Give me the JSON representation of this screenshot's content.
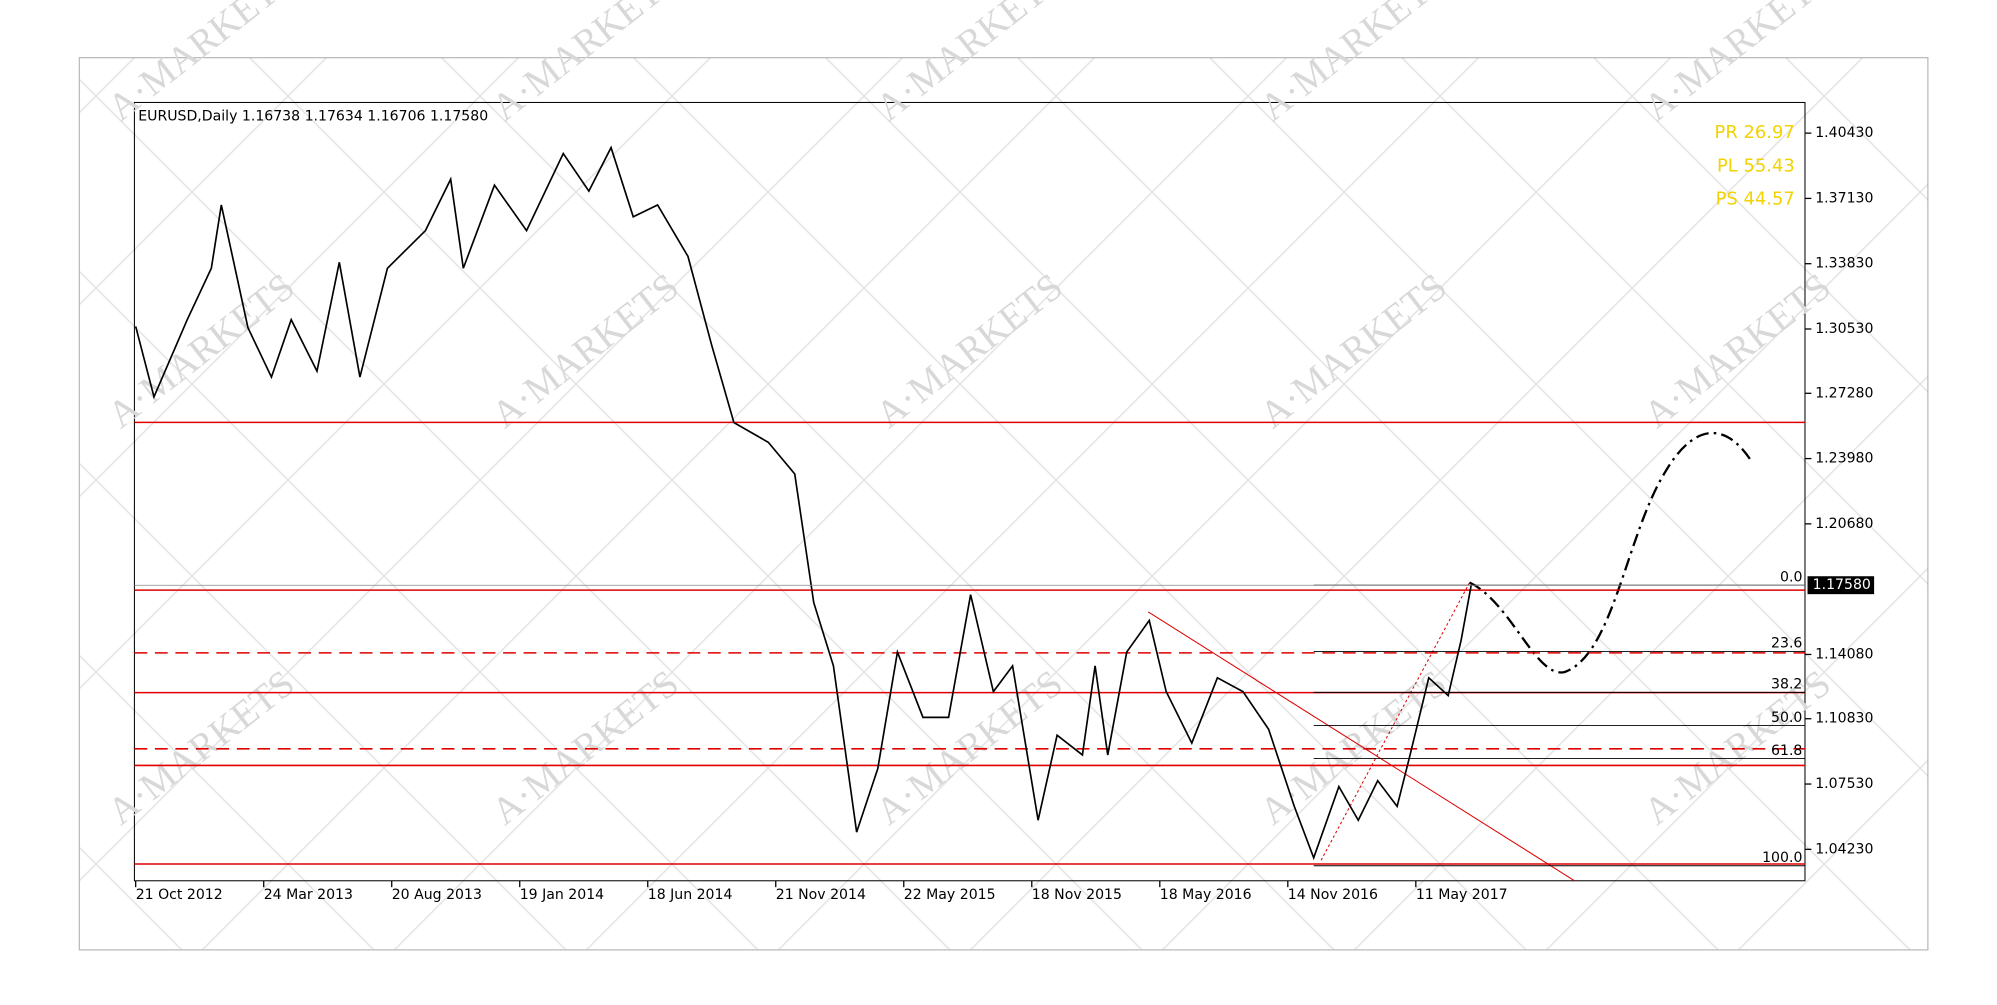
{
  "chart_data": {
    "type": "line",
    "title": "EURUSD,Daily  1.16738 1.17634 1.16706 1.17580",
    "watermark": "A·MARKETS",
    "stats": [
      "PR 26.97",
      "PL 55.43",
      "PS 44.57"
    ],
    "x": [
      "2012-10-21",
      "2012-11-12",
      "2012-12-22",
      "2013-01-20",
      "2013-02-01",
      "2013-03-05",
      "2013-04-02",
      "2013-04-25",
      "2013-05-25",
      "2013-06-20",
      "2013-07-14",
      "2013-08-15",
      "2013-09-29",
      "2013-10-29",
      "2013-11-13",
      "2013-12-20",
      "2014-01-27",
      "2014-03-11",
      "2014-04-10",
      "2014-05-06",
      "2014-06-01",
      "2014-06-30",
      "2014-08-06",
      "2014-09-04",
      "2014-10-01",
      "2014-11-12",
      "2014-12-18",
      "2015-01-14",
      "2015-02-11",
      "2015-03-16",
      "2015-04-15",
      "2015-05-13",
      "2015-06-18",
      "2015-07-24",
      "2015-08-24",
      "2015-09-25",
      "2015-10-22",
      "2015-11-27",
      "2015-12-24",
      "2016-01-29",
      "2016-02-16",
      "2016-03-05",
      "2016-04-01",
      "2016-05-03",
      "2016-05-27",
      "2016-07-02",
      "2016-08-07",
      "2016-09-12",
      "2016-10-18",
      "2016-11-23",
      "2016-12-20",
      "2017-01-24",
      "2017-02-20",
      "2017-03-19",
      "2017-04-15",
      "2017-05-03",
      "2017-05-29",
      "2017-06-25",
      "2017-07-13",
      "2017-07-27"
    ],
    "series": [
      {
        "name": "EURUSD",
        "color": "#000000",
        "values": [
          1.3066,
          1.271,
          1.31,
          1.336,
          1.368,
          1.306,
          1.281,
          1.31,
          1.284,
          1.339,
          1.281,
          1.336,
          1.355,
          1.381,
          1.336,
          1.378,
          1.355,
          1.394,
          1.375,
          1.397,
          1.362,
          1.368,
          1.342,
          1.297,
          1.258,
          1.248,
          1.232,
          1.167,
          1.135,
          1.051,
          1.083,
          1.142,
          1.109,
          1.109,
          1.171,
          1.122,
          1.135,
          1.057,
          1.1,
          1.09,
          1.135,
          1.09,
          1.142,
          1.158,
          1.122,
          1.096,
          1.129,
          1.122,
          1.103,
          1.064,
          1.038,
          1.074,
          1.057,
          1.077,
          1.064,
          1.09,
          1.129,
          1.12,
          1.148,
          1.1758
        ]
      }
    ],
    "ylim": [
      1.0264,
      1.4198
    ],
    "yticks": [
      {
        "value": 1.4043,
        "label": "1.40430"
      },
      {
        "value": 1.3713,
        "label": "1.37130"
      },
      {
        "value": 1.3383,
        "label": "1.33830"
      },
      {
        "value": 1.3053,
        "label": "1.30530"
      },
      {
        "value": 1.2728,
        "label": "1.27280"
      },
      {
        "value": 1.2398,
        "label": "1.23980"
      },
      {
        "value": 1.2068,
        "label": "1.20680"
      },
      {
        "value": 1.1408,
        "label": "1.14080"
      },
      {
        "value": 1.1083,
        "label": "1.10830"
      },
      {
        "value": 1.0753,
        "label": "1.07530"
      },
      {
        "value": 1.0423,
        "label": "1.04230"
      }
    ],
    "xticks": [
      {
        "value": "2012-10-21",
        "label": "21 Oct 2012"
      },
      {
        "value": "2013-03-24",
        "label": "24 Mar 2013"
      },
      {
        "value": "2013-08-20",
        "label": "20 Aug 2013"
      },
      {
        "value": "2014-01-19",
        "label": "19 Jan 2014"
      },
      {
        "value": "2014-06-18",
        "label": "18 Jun 2014"
      },
      {
        "value": "2014-11-21",
        "label": "21 Nov 2014"
      },
      {
        "value": "2015-05-22",
        "label": "22 May 2015"
      },
      {
        "value": "2015-11-18",
        "label": "18 Nov 2015"
      },
      {
        "value": "2016-05-18",
        "label": "18 May 2016"
      },
      {
        "value": "2016-11-14",
        "label": "14 Nov 2016"
      },
      {
        "value": "2017-05-11",
        "label": "11 May 2017"
      }
    ],
    "last": {
      "value": 1.1758,
      "label": "1.17580"
    },
    "level_color": "#e00000",
    "levels": [
      {
        "value": 1.2581,
        "style": "solid"
      },
      {
        "value": 1.1733,
        "style": "solid"
      },
      {
        "value": 1.1416,
        "style": "dashed"
      },
      {
        "value": 1.1215,
        "style": "solid"
      },
      {
        "value": 1.0931,
        "style": "dashed"
      },
      {
        "value": 1.0847,
        "style": "solid"
      },
      {
        "value": 1.0349,
        "style": "solid"
      }
    ],
    "fibonacci": {
      "high": 1.1758,
      "low": 1.034,
      "start": "2016-12-20",
      "ratios": [
        {
          "value": 0,
          "label": "0.0"
        },
        23.6,
        38.2,
        {
          "value": 50,
          "label": "50.0"
        },
        61.8,
        {
          "value": 100,
          "label": "100.0"
        }
      ]
    }
  }
}
